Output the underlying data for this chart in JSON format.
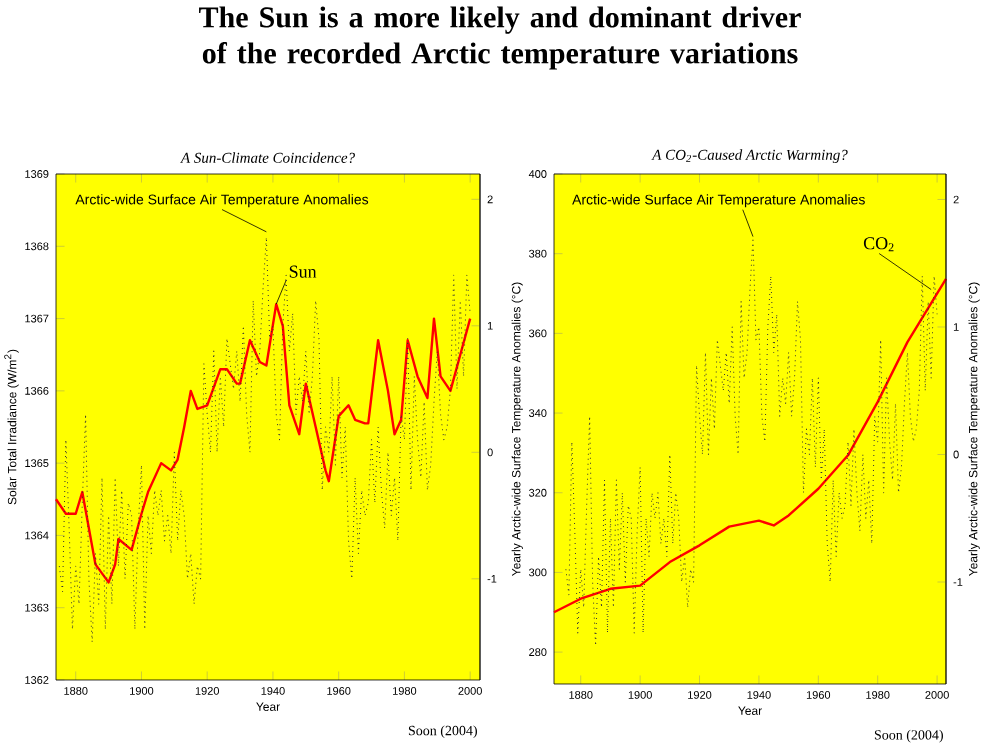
{
  "chart_data": [
    {
      "type": "line",
      "title": "A Sun-Climate Coincidence?",
      "xlabel": "Year",
      "ylabel": "Solar Total Irradiance (W/m$^{2}$)",
      "xlim": [
        1874,
        2003
      ],
      "xticks": [
        1880,
        1900,
        1920,
        1940,
        1960,
        1980,
        2000
      ],
      "ylim": [
        1362,
        1369
      ],
      "yticks": [
        1362,
        1363,
        1364,
        1365,
        1366,
        1367,
        1368,
        1369
      ],
      "y2lim": [
        -1.8,
        2.2
      ],
      "y2ticks": [
        -1,
        0,
        1,
        2
      ],
      "marker": "none",
      "series": [
        {
          "color": "#333333",
          "axis": "y2",
          "line_style": "dotted",
          "x": [
            1875,
            1876,
            1877,
            1878,
            1879,
            1880,
            1881,
            1882,
            1883,
            1884,
            1885,
            1886,
            1887,
            1888,
            1889,
            1890,
            1891,
            1892,
            1893,
            1894,
            1895,
            1896,
            1897,
            1898,
            1899,
            1900,
            1901,
            1902,
            1903,
            1904,
            1905,
            1906,
            1907,
            1908,
            1909,
            1910,
            1911,
            1912,
            1913,
            1914,
            1915,
            1916,
            1917,
            1918,
            1919,
            1920,
            1921,
            1922,
            1923,
            1924,
            1925,
            1926,
            1927,
            1928,
            1929,
            1930,
            1931,
            1932,
            1933,
            1934,
            1935,
            1936,
            1937,
            1938,
            1939,
            1940,
            1941,
            1942,
            1943,
            1944,
            1945,
            1946,
            1947,
            1948,
            1949,
            1950,
            1951,
            1952,
            1953,
            1954,
            1955,
            1956,
            1957,
            1958,
            1959,
            1960,
            1961,
            1962,
            1963,
            1964,
            1965,
            1966,
            1967,
            1968,
            1969,
            1970,
            1971,
            1972,
            1973,
            1974,
            1975,
            1976,
            1977,
            1978,
            1979,
            1980,
            1981,
            1982,
            1983,
            1984,
            1985,
            1986,
            1987,
            1988,
            1989,
            1990,
            1991,
            1992,
            1993,
            1994,
            1995,
            1996,
            1997,
            1998,
            1999,
            2000
          ],
          "values": [
            -0.9,
            -1.1,
            0.1,
            -0.6,
            -1.4,
            -0.9,
            -1.2,
            -0.4,
            0.3,
            -1.0,
            -1.5,
            -0.8,
            -1.2,
            -0.2,
            -1.4,
            -0.5,
            -1.2,
            -0.2,
            -0.9,
            -0.3,
            -1.0,
            -0.4,
            -0.5,
            -1.4,
            -0.6,
            -0.1,
            -1.4,
            -0.5,
            -0.8,
            -0.3,
            -0.5,
            -0.3,
            -0.7,
            -0.5,
            -0.8,
            0.0,
            -0.7,
            -0.3,
            -0.5,
            -1.0,
            -0.8,
            -1.2,
            -0.9,
            -1.0,
            0.7,
            0.3,
            0.0,
            0.8,
            0.0,
            0.6,
            0.2,
            0.9,
            0.7,
            0.5,
            0.8,
            0.4,
            1.0,
            0.3,
            0.0,
            1.2,
            0.6,
            0.8,
            1.3,
            1.7,
            0.9,
            1.0,
            0.3,
            0.1,
            1.0,
            1.4,
            0.8,
            1.1,
            0.3,
            0.6,
            0.4,
            0.8,
            0.3,
            0.6,
            1.2,
            0.9,
            -0.3,
            0.2,
            0.0,
            0.6,
            -0.1,
            0.6,
            -0.2,
            0.2,
            -0.7,
            -1.0,
            -0.2,
            -0.8,
            -0.3,
            -0.5,
            -0.4,
            0.1,
            -0.4,
            0.2,
            -0.3,
            -0.6,
            0.0,
            -0.5,
            -0.2,
            -0.7,
            0.3,
            0.1,
            0.9,
            -0.3,
            0.6,
            0.1,
            -0.2,
            0.4,
            -0.3,
            -0.1,
            0.4,
            0.8,
            0.3,
            0.1,
            0.2,
            0.5,
            1.4,
            0.5,
            1.2,
            0.6,
            1.4,
            1.1
          ]
        },
        {
          "color": "#ff0000",
          "line_style": "solid",
          "x": [
            1874,
            1877,
            1880,
            1882,
            1884,
            1886,
            1890,
            1892,
            1893,
            1897,
            1900,
            1902,
            1905,
            1906,
            1909,
            1911,
            1913,
            1915,
            1917,
            1920,
            1924,
            1926,
            1929,
            1930,
            1933,
            1936,
            1938,
            1941,
            1943,
            1945,
            1948,
            1950,
            1953,
            1956,
            1957,
            1960,
            1963,
            1965,
            1968,
            1969,
            1972,
            1975,
            1977,
            1979,
            1981,
            1984,
            1987,
            1989,
            1991,
            1994,
            1997,
            2000
          ],
          "values": [
            1364.5,
            1364.3,
            1364.3,
            1364.6,
            1364.1,
            1363.6,
            1363.35,
            1363.6,
            1363.95,
            1363.8,
            1364.3,
            1364.6,
            1364.9,
            1365.0,
            1364.9,
            1365.05,
            1365.5,
            1366.0,
            1365.75,
            1365.8,
            1366.3,
            1366.3,
            1366.1,
            1366.1,
            1366.7,
            1366.4,
            1366.35,
            1367.2,
            1366.9,
            1365.8,
            1365.4,
            1366.1,
            1365.5,
            1364.9,
            1364.75,
            1365.65,
            1365.8,
            1365.6,
            1365.55,
            1365.55,
            1366.7,
            1366.0,
            1365.4,
            1365.6,
            1366.7,
            1366.2,
            1365.9,
            1367.0,
            1366.2,
            1366.0,
            1366.5,
            1367.0
          ]
        }
      ],
      "annotations": [
        "**The Sun is a more likely and dominant driver of the recorded Arctic temperature variations**",
        {
          "text": "Arctic-wide Surface Air Temperature Anomalies",
          "x": 1938,
          "y": 1368.2
        },
        {
          "text": "Sun",
          "x": 1941,
          "y": 1367.2
        },
        "Soon (2004)"
      ]
    },
    {
      "type": "line",
      "title": "A CO$_{2}$-Caused Arctic Warming?",
      "xlabel": "Year",
      "ylabel": "Yearly Arctic-wide Surface Temperature Anomalies (°C)",
      "y2label": "Yearly Arctic-wide Surface Temperature Anomalies (°C)",
      "xlim": [
        1871,
        2003
      ],
      "xticks": [
        1880,
        1900,
        1920,
        1940,
        1960,
        1980,
        2000
      ],
      "ylim": [
        272,
        400
      ],
      "yticks": [
        280,
        300,
        320,
        340,
        360,
        380,
        400
      ],
      "y2lim": [
        -1.8,
        2.2
      ],
      "y2ticks": [
        -1,
        0,
        1,
        2
      ],
      "marker": "none",
      "series": [
        {
          "color": "#333333",
          "axis": "y2",
          "line_style": "dotted",
          "x": [
            1875,
            1876,
            1877,
            1878,
            1879,
            1880,
            1881,
            1882,
            1883,
            1884,
            1885,
            1886,
            1887,
            1888,
            1889,
            1890,
            1891,
            1892,
            1893,
            1894,
            1895,
            1896,
            1897,
            1898,
            1899,
            1900,
            1901,
            1902,
            1903,
            1904,
            1905,
            1906,
            1907,
            1908,
            1909,
            1910,
            1911,
            1912,
            1913,
            1914,
            1915,
            1916,
            1917,
            1918,
            1919,
            1920,
            1921,
            1922,
            1923,
            1924,
            1925,
            1926,
            1927,
            1928,
            1929,
            1930,
            1931,
            1932,
            1933,
            1934,
            1935,
            1936,
            1937,
            1938,
            1939,
            1940,
            1941,
            1942,
            1943,
            1944,
            1945,
            1946,
            1947,
            1948,
            1949,
            1950,
            1951,
            1952,
            1953,
            1954,
            1955,
            1956,
            1957,
            1958,
            1959,
            1960,
            1961,
            1962,
            1963,
            1964,
            1965,
            1966,
            1967,
            1968,
            1969,
            1970,
            1971,
            1972,
            1973,
            1974,
            1975,
            1976,
            1977,
            1978,
            1979,
            1980,
            1981,
            1982,
            1983,
            1984,
            1985,
            1986,
            1987,
            1988,
            1989,
            1990,
            1991,
            1992,
            1993,
            1994,
            1995,
            1996,
            1997,
            1998,
            1999,
            2000
          ],
          "values": [
            -0.9,
            -1.1,
            0.1,
            -0.6,
            -1.4,
            -0.9,
            -1.2,
            -0.4,
            0.3,
            -1.0,
            -1.5,
            -0.8,
            -1.2,
            -0.2,
            -1.4,
            -0.5,
            -1.2,
            -0.2,
            -0.9,
            -0.3,
            -1.0,
            -0.4,
            -0.5,
            -1.4,
            -0.6,
            -0.1,
            -1.4,
            -0.5,
            -0.8,
            -0.3,
            -0.5,
            -0.3,
            -0.7,
            -0.5,
            -0.8,
            0.0,
            -0.7,
            -0.3,
            -0.5,
            -1.0,
            -0.8,
            -1.2,
            -0.9,
            -1.0,
            0.7,
            0.3,
            0.0,
            0.8,
            0.0,
            0.6,
            0.2,
            0.9,
            0.7,
            0.5,
            0.8,
            0.4,
            1.0,
            0.3,
            0.0,
            1.2,
            0.6,
            0.8,
            1.3,
            1.7,
            0.9,
            1.0,
            0.3,
            0.1,
            1.0,
            1.4,
            0.8,
            1.1,
            0.3,
            0.6,
            0.4,
            0.8,
            0.3,
            0.6,
            1.2,
            0.9,
            -0.3,
            0.2,
            0.0,
            0.6,
            -0.1,
            0.6,
            -0.2,
            0.2,
            -0.7,
            -1.0,
            -0.2,
            -0.8,
            -0.3,
            -0.5,
            -0.4,
            0.1,
            -0.4,
            0.2,
            -0.3,
            -0.6,
            0.0,
            -0.5,
            -0.2,
            -0.7,
            0.3,
            0.1,
            0.9,
            -0.3,
            0.6,
            0.1,
            -0.2,
            0.4,
            -0.3,
            -0.1,
            0.4,
            0.8,
            0.3,
            0.1,
            0.2,
            0.5,
            1.4,
            0.5,
            1.2,
            0.6,
            1.4,
            1.1
          ]
        },
        {
          "color": "#ff0000",
          "line_style": "solid",
          "x": [
            1871,
            1880,
            1890,
            1900,
            1910,
            1920,
            1930,
            1940,
            1945,
            1950,
            1960,
            1970,
            1980,
            1990,
            2003
          ],
          "values": [
            290,
            293.4,
            295.9,
            296.7,
            302.6,
            306.8,
            311.5,
            313,
            311.8,
            314.3,
            321,
            329.4,
            342.8,
            357.8,
            373.7
          ]
        }
      ],
      "annotations": [
        {
          "text": "Arctic-wide Surface Air Temperature Anomalies",
          "x": 1938,
          "y": 384.3
        },
        {
          "text": "CO$_{2}$",
          "x": 1998,
          "y": 371
        },
        "Soon (2004)"
      ]
    }
  ]
}
